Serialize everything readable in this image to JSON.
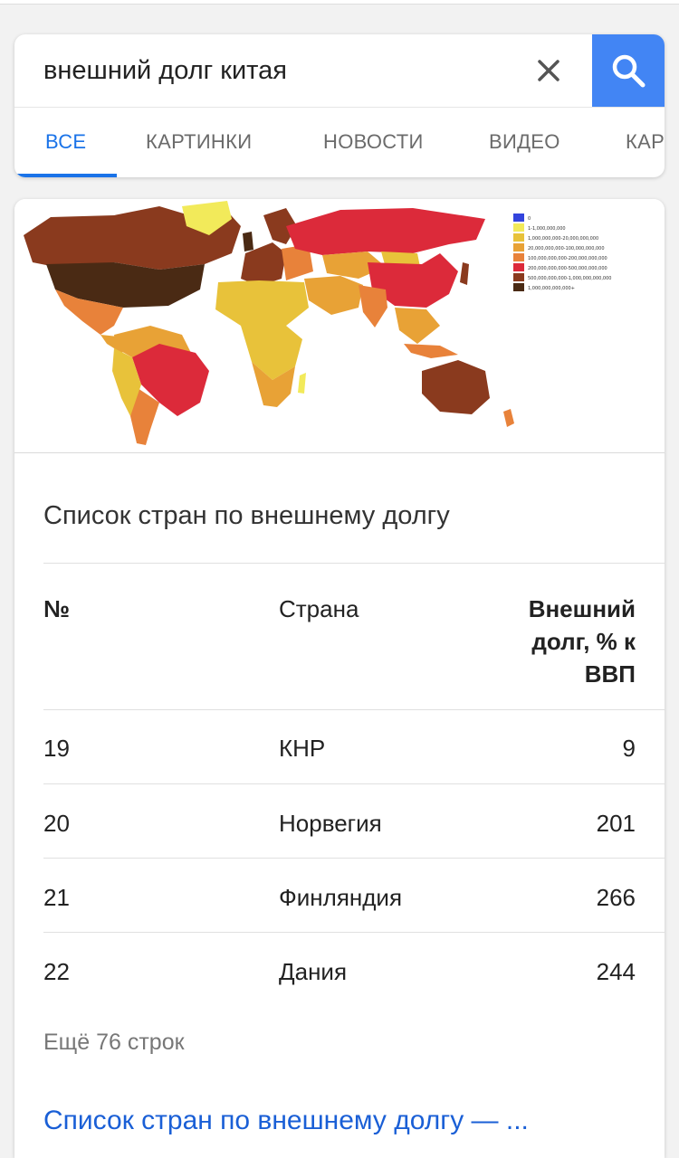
{
  "search": {
    "query": "внешний долг китая"
  },
  "tabs": [
    {
      "label": "ВСЕ",
      "active": true
    },
    {
      "label": "КАРТИНКИ",
      "active": false
    },
    {
      "label": "НОВОСТИ",
      "active": false
    },
    {
      "label": "ВИДЕО",
      "active": false
    },
    {
      "label": "КАР",
      "active": false
    }
  ],
  "map": {
    "legend": [
      {
        "color": "#3344dd",
        "label": "0"
      },
      {
        "color": "#f2ea5a",
        "label": "1-1,000,000,000"
      },
      {
        "color": "#e8c23a",
        "label": "1,000,000,000-20,000,000,000"
      },
      {
        "color": "#e8a236",
        "label": "20,000,000,000-100,000,000,000"
      },
      {
        "color": "#e8823a",
        "label": "100,000,000,000-200,000,000,000"
      },
      {
        "color": "#dc2a3a",
        "label": "200,000,000,000-500,000,000,000"
      },
      {
        "color": "#8a3a1e",
        "label": "500,000,000,000-1,000,000,000,000"
      },
      {
        "color": "#4a2a14",
        "label": "1,000,000,000,000+"
      }
    ]
  },
  "card": {
    "title": "Список стран по внешнему долгу",
    "table": {
      "headers": {
        "num": "№",
        "country": "Страна",
        "debt_line1": "Внешний",
        "debt_line2": "долг, % к",
        "debt_line3": "ВВП"
      },
      "rows": [
        {
          "num": "19",
          "country": "КНР",
          "debt": "9"
        },
        {
          "num": "20",
          "country": "Норвегия",
          "debt": "201"
        },
        {
          "num": "21",
          "country": "Финляндия",
          "debt": "266"
        },
        {
          "num": "22",
          "country": "Дания",
          "debt": "244"
        }
      ]
    },
    "more_rows": "Ещё 76 строк",
    "source_link": "Список стран по внешнему долгу — ..."
  }
}
